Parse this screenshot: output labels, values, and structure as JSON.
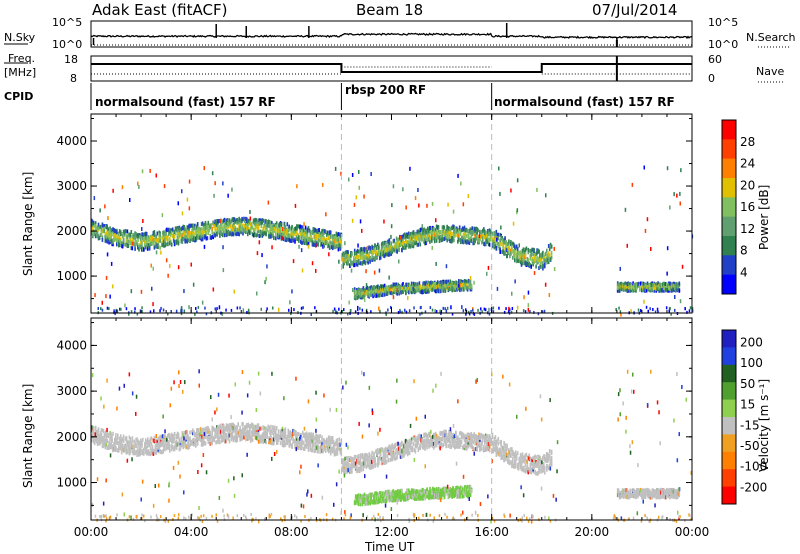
{
  "header": {
    "station": "Adak East (fitACF)",
    "beam": "Beam 18",
    "date": "07/Jul/2014"
  },
  "top_panels": {
    "nsky_label": "N.Sky",
    "nsky_ticks": [
      "10^5",
      "10^0"
    ],
    "nsearch_label": "N.Search",
    "nsearch_ticks": [
      "10^5",
      "10^0"
    ],
    "freq_label": "Freq.",
    "freq_unit": "[MHz]",
    "freq_ticks": [
      "18",
      "8"
    ],
    "nave_label": "Nave",
    "nave_ticks": [
      "60",
      "0"
    ],
    "cpid_label": "CPID"
  },
  "cpid_segments": [
    {
      "label": "normalsound (fast) 157 RF",
      "start_hour": 0,
      "end_hour": 10
    },
    {
      "label": "rbsp 200 RF",
      "start_hour": 10,
      "end_hour": 16
    },
    {
      "label": "normalsound (fast) 157 RF",
      "start_hour": 16,
      "end_hour": 24
    }
  ],
  "colors": {
    "power_scale": [
      "#0000ff",
      "#2040c8",
      "#308050",
      "#60a070",
      "#80c060",
      "#e0c000",
      "#ff8000",
      "#ff4000",
      "#ff0000"
    ],
    "velocity_scale": [
      "#2020c0",
      "#2040e0",
      "#206020",
      "#50a030",
      "#90d050",
      "#c0c0c0",
      "#f0a020",
      "#ff8000",
      "#ff4000",
      "#ff0000"
    ],
    "ground_scatter": "#c0c0c0"
  },
  "chart_data": [
    {
      "type": "heatmap",
      "title": "",
      "xlabel": "Time UT",
      "ylabel": "Slant Range [km]",
      "x_ticks": [
        "00:00",
        "04:00",
        "08:00",
        "12:00",
        "16:00",
        "20:00",
        "00:00"
      ],
      "xlim_hours": [
        0,
        24
      ],
      "y_ticks": [
        "1000",
        "2000",
        "3000",
        "4000"
      ],
      "ylim": [
        180,
        4600
      ],
      "colorbar_label": "Power [dB]",
      "colorbar_ticks": [
        "4",
        "8",
        "12",
        "16",
        "20",
        "24",
        "28"
      ],
      "colorbar_range": [
        0,
        30
      ],
      "scatter_bands": [
        {
          "start_hour": 0.0,
          "end_hour": 10.0,
          "center_km": [
            [
              0,
              2100
            ],
            [
              1,
              1900
            ],
            [
              2,
              1800
            ],
            [
              3,
              1900
            ],
            [
              4,
              2000
            ],
            [
              5,
              2100
            ],
            [
              6,
              2150
            ],
            [
              7,
              2100
            ],
            [
              8,
              2000
            ],
            [
              9,
              1900
            ],
            [
              10,
              1800
            ]
          ],
          "width_km": 260
        },
        {
          "start_hour": 10.0,
          "end_hour": 16.0,
          "center_km": [
            [
              10,
              1400
            ],
            [
              11,
              1500
            ],
            [
              12,
              1700
            ],
            [
              13,
              1900
            ],
            [
              14,
              2000
            ],
            [
              15,
              1950
            ],
            [
              16,
              1900
            ]
          ],
          "width_km": 240
        },
        {
          "start_hour": 10.5,
          "end_hour": 15.2,
          "center_km": [
            [
              10.5,
              650
            ],
            [
              12,
              750
            ],
            [
              13.5,
              800
            ],
            [
              15.2,
              850
            ]
          ],
          "width_km": 150
        },
        {
          "start_hour": 16.0,
          "end_hour": 18.4,
          "center_km": [
            [
              16,
              1900
            ],
            [
              17,
              1500
            ],
            [
              18,
              1400
            ],
            [
              18.4,
              1600
            ]
          ],
          "width_km": 280
        },
        {
          "start_hour": 21.0,
          "end_hour": 23.5,
          "center_km": [
            [
              21,
              800
            ],
            [
              23.5,
              800
            ]
          ],
          "width_km": 120
        }
      ]
    },
    {
      "type": "heatmap",
      "title": "",
      "xlabel": "Time UT",
      "ylabel": "Slant Range [km]",
      "x_ticks": [
        "00:00",
        "04:00",
        "08:00",
        "12:00",
        "16:00",
        "20:00",
        "00:00"
      ],
      "xlim_hours": [
        0,
        24
      ],
      "y_ticks": [
        "1000",
        "2000",
        "3000",
        "4000"
      ],
      "ylim": [
        180,
        4600
      ],
      "colorbar_label": "Velocity [m s⁻¹]",
      "colorbar_ticks": [
        "200",
        "100",
        "50",
        "15",
        "-15",
        "-50",
        "-100",
        "-200"
      ],
      "colorbar_range": [
        -250,
        250
      ],
      "scatter_bands": [
        {
          "start_hour": 0.0,
          "end_hour": 10.0,
          "center_km": [
            [
              0,
              2100
            ],
            [
              1,
              1900
            ],
            [
              2,
              1800
            ],
            [
              3,
              1900
            ],
            [
              4,
              2000
            ],
            [
              5,
              2100
            ],
            [
              6,
              2150
            ],
            [
              7,
              2100
            ],
            [
              8,
              2000
            ],
            [
              9,
              1900
            ],
            [
              10,
              1800
            ]
          ],
          "width_km": 260
        },
        {
          "start_hour": 10.0,
          "end_hour": 16.0,
          "center_km": [
            [
              10,
              1400
            ],
            [
              11,
              1500
            ],
            [
              12,
              1700
            ],
            [
              13,
              1900
            ],
            [
              14,
              2000
            ],
            [
              15,
              1950
            ],
            [
              16,
              1900
            ]
          ],
          "width_km": 240
        },
        {
          "start_hour": 10.5,
          "end_hour": 15.2,
          "center_km": [
            [
              10.5,
              650
            ],
            [
              12,
              750
            ],
            [
              13.5,
              800
            ],
            [
              15.2,
              850
            ]
          ],
          "width_km": 150
        },
        {
          "start_hour": 16.0,
          "end_hour": 18.4,
          "center_km": [
            [
              16,
              1900
            ],
            [
              17,
              1500
            ],
            [
              18,
              1400
            ],
            [
              18.4,
              1600
            ]
          ],
          "width_km": 280
        },
        {
          "start_hour": 21.0,
          "end_hour": 23.5,
          "center_km": [
            [
              21,
              800
            ],
            [
              23.5,
              800
            ]
          ],
          "width_km": 120
        }
      ]
    }
  ]
}
